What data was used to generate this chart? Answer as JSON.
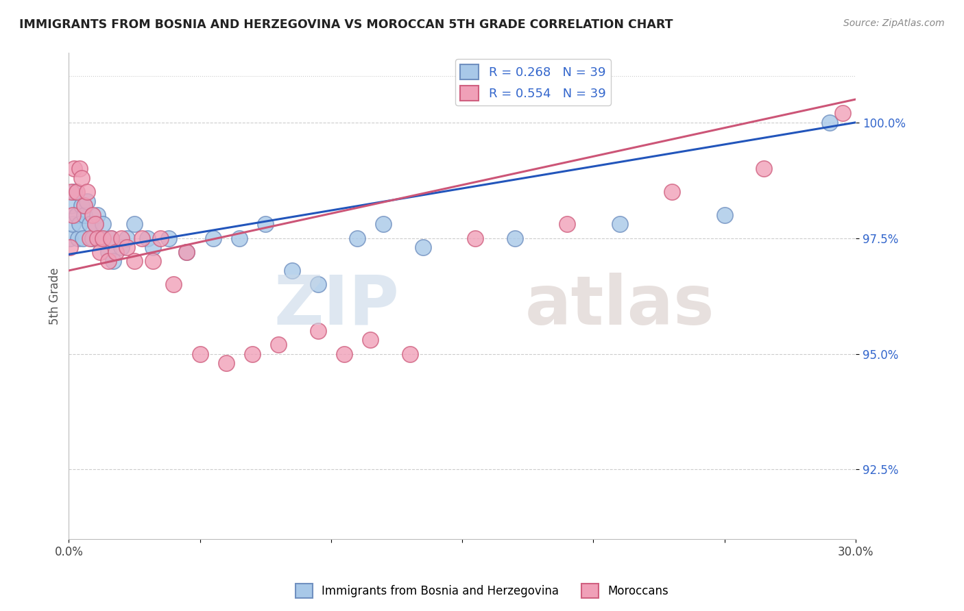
{
  "title": "IMMIGRANTS FROM BOSNIA AND HERZEGOVINA VS MOROCCAN 5TH GRADE CORRELATION CHART",
  "source_text": "Source: ZipAtlas.com",
  "ylabel": "5th Grade",
  "xlim": [
    0.0,
    30.0
  ],
  "ylim": [
    91.0,
    101.5
  ],
  "yticks": [
    92.5,
    95.0,
    97.5,
    100.0
  ],
  "ytick_labels": [
    "92.5%",
    "95.0%",
    "97.5%",
    "100.0%"
  ],
  "xticks": [
    0.0,
    5.0,
    10.0,
    15.0,
    20.0,
    25.0,
    30.0
  ],
  "xtick_labels": [
    "0.0%",
    "",
    "",
    "",
    "",
    "",
    "30.0%"
  ],
  "bosnia_color": "#a8c8e8",
  "morocco_color": "#f0a0b8",
  "bosnia_edge": "#7090c0",
  "morocco_edge": "#d06080",
  "bosnia_line_color": "#2255bb",
  "morocco_line_color": "#cc5577",
  "bosnia_R": 0.268,
  "bosnia_N": 39,
  "morocco_R": 0.554,
  "morocco_N": 39,
  "legend_label_bosnia": "Immigrants from Bosnia and Herzegovina",
  "legend_label_morocco": "Moroccans",
  "bosnia_x": [
    0.05,
    0.1,
    0.15,
    0.2,
    0.3,
    0.35,
    0.4,
    0.5,
    0.55,
    0.6,
    0.7,
    0.8,
    0.9,
    1.0,
    1.1,
    1.2,
    1.3,
    1.5,
    1.6,
    1.7,
    2.0,
    2.2,
    2.5,
    3.0,
    3.2,
    3.8,
    4.5,
    5.5,
    6.5,
    7.5,
    8.5,
    9.5,
    11.0,
    12.0,
    13.5,
    17.0,
    21.0,
    25.0,
    29.0
  ],
  "bosnia_y": [
    97.5,
    98.2,
    97.8,
    98.5,
    98.0,
    97.5,
    97.8,
    98.2,
    97.5,
    98.0,
    98.3,
    97.8,
    97.5,
    97.8,
    98.0,
    97.5,
    97.8,
    97.2,
    97.5,
    97.0,
    97.3,
    97.5,
    97.8,
    97.5,
    97.3,
    97.5,
    97.2,
    97.5,
    97.5,
    97.8,
    96.8,
    96.5,
    97.5,
    97.8,
    97.3,
    97.5,
    97.8,
    98.0,
    100.0
  ],
  "morocco_x": [
    0.05,
    0.1,
    0.15,
    0.2,
    0.3,
    0.4,
    0.5,
    0.6,
    0.7,
    0.8,
    0.9,
    1.0,
    1.1,
    1.2,
    1.3,
    1.5,
    1.6,
    1.8,
    2.0,
    2.2,
    2.5,
    2.8,
    3.2,
    3.5,
    4.0,
    4.5,
    5.0,
    6.0,
    7.0,
    8.0,
    9.5,
    10.5,
    11.5,
    13.0,
    15.5,
    19.0,
    23.0,
    26.5,
    29.5
  ],
  "morocco_y": [
    97.3,
    98.5,
    98.0,
    99.0,
    98.5,
    99.0,
    98.8,
    98.2,
    98.5,
    97.5,
    98.0,
    97.8,
    97.5,
    97.2,
    97.5,
    97.0,
    97.5,
    97.2,
    97.5,
    97.3,
    97.0,
    97.5,
    97.0,
    97.5,
    96.5,
    97.2,
    95.0,
    94.8,
    95.0,
    95.2,
    95.5,
    95.0,
    95.3,
    95.0,
    97.5,
    97.8,
    98.5,
    99.0,
    100.2
  ]
}
